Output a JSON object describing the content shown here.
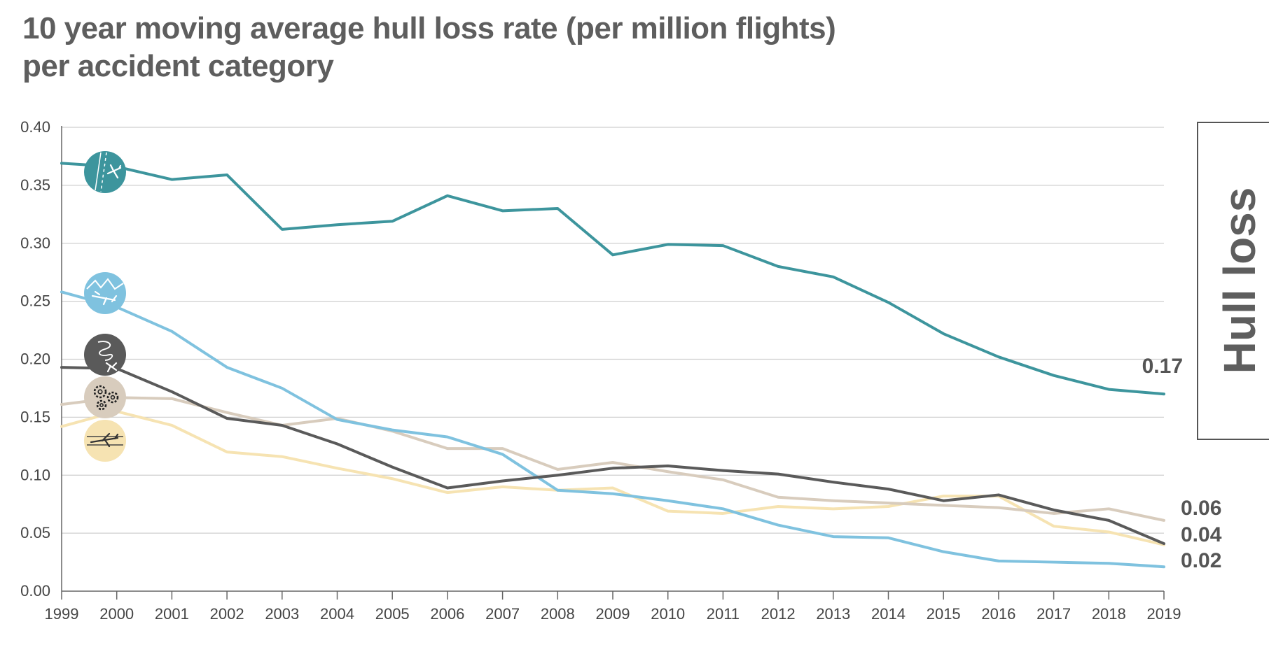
{
  "title_lines": [
    "10 year moving average hull loss rate (per million flights)",
    "per accident category"
  ],
  "side_label": "Hull loss",
  "chart_data": {
    "type": "line",
    "title": "10 year moving average hull loss rate (per million flights) per accident category",
    "xlabel": "",
    "ylabel": "",
    "x": [
      1999,
      2000,
      2001,
      2002,
      2003,
      2004,
      2005,
      2006,
      2007,
      2008,
      2009,
      2010,
      2011,
      2012,
      2013,
      2014,
      2015,
      2016,
      2017,
      2018,
      2019
    ],
    "x_tick_labels": [
      "1999",
      "2000",
      "2001",
      "2002",
      "2003",
      "2004",
      "2005",
      "2006",
      "2007",
      "2008",
      "2009",
      "2010",
      "2011",
      "2012",
      "2013",
      "2014",
      "2015",
      "2016",
      "2017",
      "2018",
      "2019"
    ],
    "ylim": [
      0,
      0.4
    ],
    "y_ticks": [
      0.0,
      0.05,
      0.1,
      0.15,
      0.2,
      0.25,
      0.3,
      0.35,
      0.4
    ],
    "y_tick_labels": [
      "0.00",
      "0.05",
      "0.10",
      "0.15",
      "0.20",
      "0.25",
      "0.30",
      "0.35",
      "0.40"
    ],
    "grid": true,
    "series": [
      {
        "color": "#3d959d",
        "icon": "runway-aircraft-icon",
        "end_label": "0.17",
        "values": [
          0.369,
          0.366,
          0.355,
          0.359,
          0.312,
          0.316,
          0.319,
          0.341,
          0.328,
          0.33,
          0.29,
          0.299,
          0.298,
          0.28,
          0.271,
          0.249,
          0.222,
          0.202,
          0.186,
          0.174,
          0.17
        ]
      },
      {
        "color": "#7fc2df",
        "icon": "mountain-aircraft-icon",
        "end_label": "0.02",
        "values": [
          0.258,
          0.245,
          0.224,
          0.193,
          0.175,
          0.148,
          0.139,
          0.133,
          0.118,
          0.087,
          0.084,
          0.078,
          0.071,
          0.057,
          0.047,
          0.046,
          0.034,
          0.026,
          0.025,
          0.024,
          0.021
        ]
      },
      {
        "color": "#5a5a5a",
        "icon": "loss-of-control-icon",
        "end_label": "0.04",
        "values": [
          0.193,
          0.192,
          0.172,
          0.149,
          0.143,
          0.127,
          0.107,
          0.089,
          0.095,
          0.1,
          0.106,
          0.108,
          0.104,
          0.101,
          0.094,
          0.088,
          0.078,
          0.083,
          0.07,
          0.061,
          0.041
        ]
      },
      {
        "color": "#d8ccbd",
        "icon": "gears-icon",
        "end_label": "0.06",
        "values": [
          0.161,
          0.167,
          0.166,
          0.154,
          0.143,
          0.149,
          0.138,
          0.123,
          0.123,
          0.105,
          0.111,
          0.103,
          0.096,
          0.081,
          0.078,
          0.076,
          0.074,
          0.072,
          0.067,
          0.071,
          0.061
        ]
      },
      {
        "color": "#f6e3b2",
        "icon": "runway-excursion-icon",
        "end_label": "",
        "values": [
          0.142,
          0.155,
          0.143,
          0.12,
          0.116,
          0.106,
          0.097,
          0.085,
          0.09,
          0.087,
          0.089,
          0.069,
          0.067,
          0.073,
          0.071,
          0.073,
          0.082,
          0.082,
          0.056,
          0.051,
          0.04
        ]
      }
    ],
    "end_labels_order": [
      "0.06",
      "0.04",
      "0.02"
    ]
  }
}
